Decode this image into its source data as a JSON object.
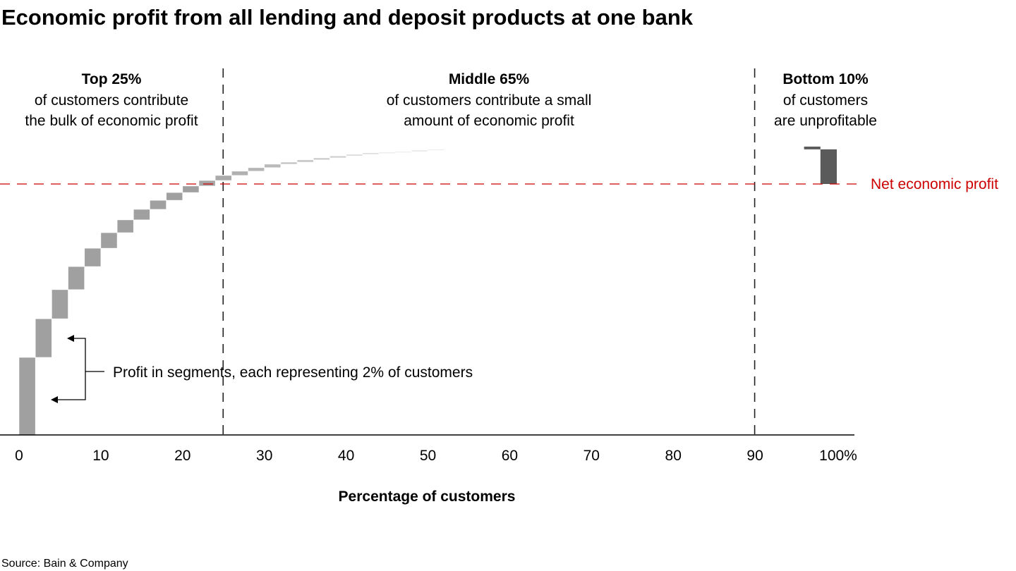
{
  "chart_data": {
    "type": "waterfall",
    "title": "Economic profit from all lending and deposit products at one bank",
    "xlabel": "Percentage of customers",
    "ylabel": "",
    "xlim": [
      0,
      100
    ],
    "ylim": [
      0,
      125
    ],
    "x_ticks": [
      "0",
      "10",
      "20",
      "30",
      "40",
      "50",
      "60",
      "70",
      "80",
      "90",
      "100%"
    ],
    "x_tick_values": [
      0,
      10,
      20,
      30,
      40,
      50,
      60,
      70,
      80,
      90,
      100
    ],
    "segment_width_pct": 2,
    "segments_cumulative_top": [
      30.9,
      46.3,
      57.9,
      67.1,
      74.4,
      80.6,
      85.7,
      89.9,
      93.5,
      96.6,
      99.2,
      101.4,
      103.4,
      105.1,
      106.5,
      107.9,
      108.7,
      109.6,
      110.4,
      111.2,
      111.8,
      112.4,
      112.6,
      112.9,
      113.5,
      113.8
    ],
    "tail_segments": [
      {
        "x_start": 96,
        "from": 113.8,
        "to": 114.9,
        "color": "#5a5a5a"
      },
      {
        "x_start": 98,
        "from": 113.8,
        "to": 100,
        "color": "#5a5a5a"
      }
    ],
    "net_economic_profit": 100,
    "net_label": "Net economic profit",
    "dividers": [
      25,
      90
    ],
    "groups": [
      {
        "heading": "Top 25%",
        "line1": "of customers contribute",
        "line2": "the bulk of economic profit"
      },
      {
        "heading": "Middle 65%",
        "line1": "of customers contribute a small",
        "line2": "amount of economic profit"
      },
      {
        "heading": "Bottom 10%",
        "line1": "of customers",
        "line2": "are unprofitable"
      }
    ],
    "annotation": "Profit in segments, each representing 2% of customers",
    "colors": {
      "segment": "#a0a0a0",
      "tail": "#5a5a5a",
      "net_line": "#cc0000"
    }
  },
  "source": "Source: Bain & Company"
}
